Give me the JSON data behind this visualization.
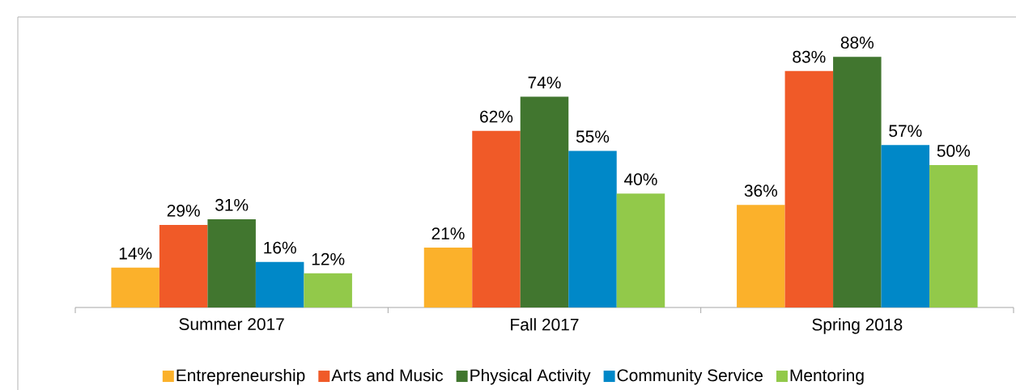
{
  "chart_data": {
    "type": "bar",
    "categories": [
      "Summer 2017",
      "Fall 2017",
      "Spring 2018"
    ],
    "series": [
      {
        "name": "Entrepreneurship",
        "color": "#fbb12b",
        "values": [
          14,
          21,
          36
        ],
        "value_labels": [
          "14%",
          "21%",
          "36%"
        ]
      },
      {
        "name": "Arts and Music",
        "color": "#f05a28",
        "values": [
          29,
          62,
          83
        ],
        "value_labels": [
          "29%",
          "62%",
          "83%"
        ]
      },
      {
        "name": "Physical Activity",
        "color": "#41762f",
        "values": [
          31,
          74,
          88
        ],
        "value_labels": [
          "31%",
          "74%",
          "88%"
        ]
      },
      {
        "name": "Community Service",
        "color": "#0088c8",
        "values": [
          16,
          55,
          57
        ],
        "value_labels": [
          "16%",
          "55%",
          "57%"
        ]
      },
      {
        "name": "Mentoring",
        "color": "#92c94a",
        "values": [
          12,
          40,
          50
        ],
        "value_labels": [
          "12%",
          "40%",
          "50%"
        ]
      }
    ],
    "legend": "bottom"
  }
}
